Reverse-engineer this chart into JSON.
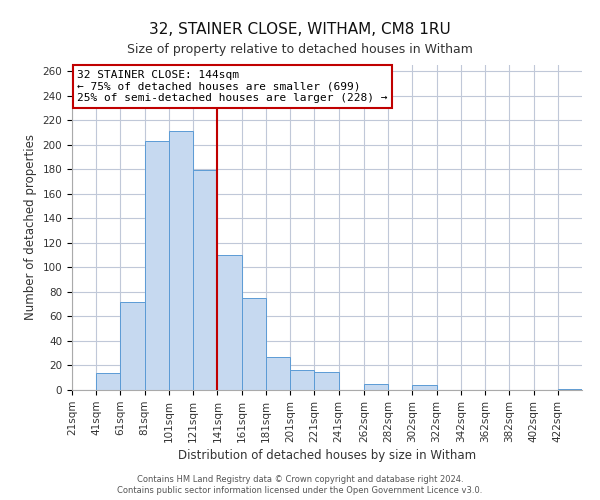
{
  "title": "32, STAINER CLOSE, WITHAM, CM8 1RU",
  "subtitle": "Size of property relative to detached houses in Witham",
  "xlabel": "Distribution of detached houses by size in Witham",
  "ylabel": "Number of detached properties",
  "bin_labels": [
    "21sqm",
    "41sqm",
    "61sqm",
    "81sqm",
    "101sqm",
    "121sqm",
    "141sqm",
    "161sqm",
    "181sqm",
    "201sqm",
    "221sqm",
    "241sqm",
    "262sqm",
    "282sqm",
    "302sqm",
    "322sqm",
    "342sqm",
    "362sqm",
    "382sqm",
    "402sqm",
    "422sqm"
  ],
  "bin_edges": [
    21,
    41,
    61,
    81,
    101,
    121,
    141,
    161,
    181,
    201,
    221,
    241,
    262,
    282,
    302,
    322,
    342,
    362,
    382,
    402,
    422,
    442
  ],
  "values": [
    0,
    14,
    72,
    203,
    211,
    179,
    110,
    75,
    27,
    16,
    15,
    0,
    5,
    0,
    4,
    0,
    0,
    0,
    0,
    0,
    1
  ],
  "bar_color": "#c6d9f0",
  "bar_edge_color": "#5b9bd5",
  "vline_x": 141,
  "vline_color": "#c00000",
  "annotation_text": "32 STAINER CLOSE: 144sqm\n← 75% of detached houses are smaller (699)\n25% of semi-detached houses are larger (228) →",
  "annotation_box_color": "#ffffff",
  "annotation_box_edge_color": "#c00000",
  "ylim": [
    0,
    265
  ],
  "yticks": [
    0,
    20,
    40,
    60,
    80,
    100,
    120,
    140,
    160,
    180,
    200,
    220,
    240,
    260
  ],
  "footer1": "Contains HM Land Registry data © Crown copyright and database right 2024.",
  "footer2": "Contains public sector information licensed under the Open Government Licence v3.0.",
  "bg_color": "#ffffff",
  "grid_color": "#c0c8d8",
  "title_fontsize": 11,
  "subtitle_fontsize": 9,
  "axis_label_fontsize": 8.5,
  "tick_fontsize": 7.5
}
